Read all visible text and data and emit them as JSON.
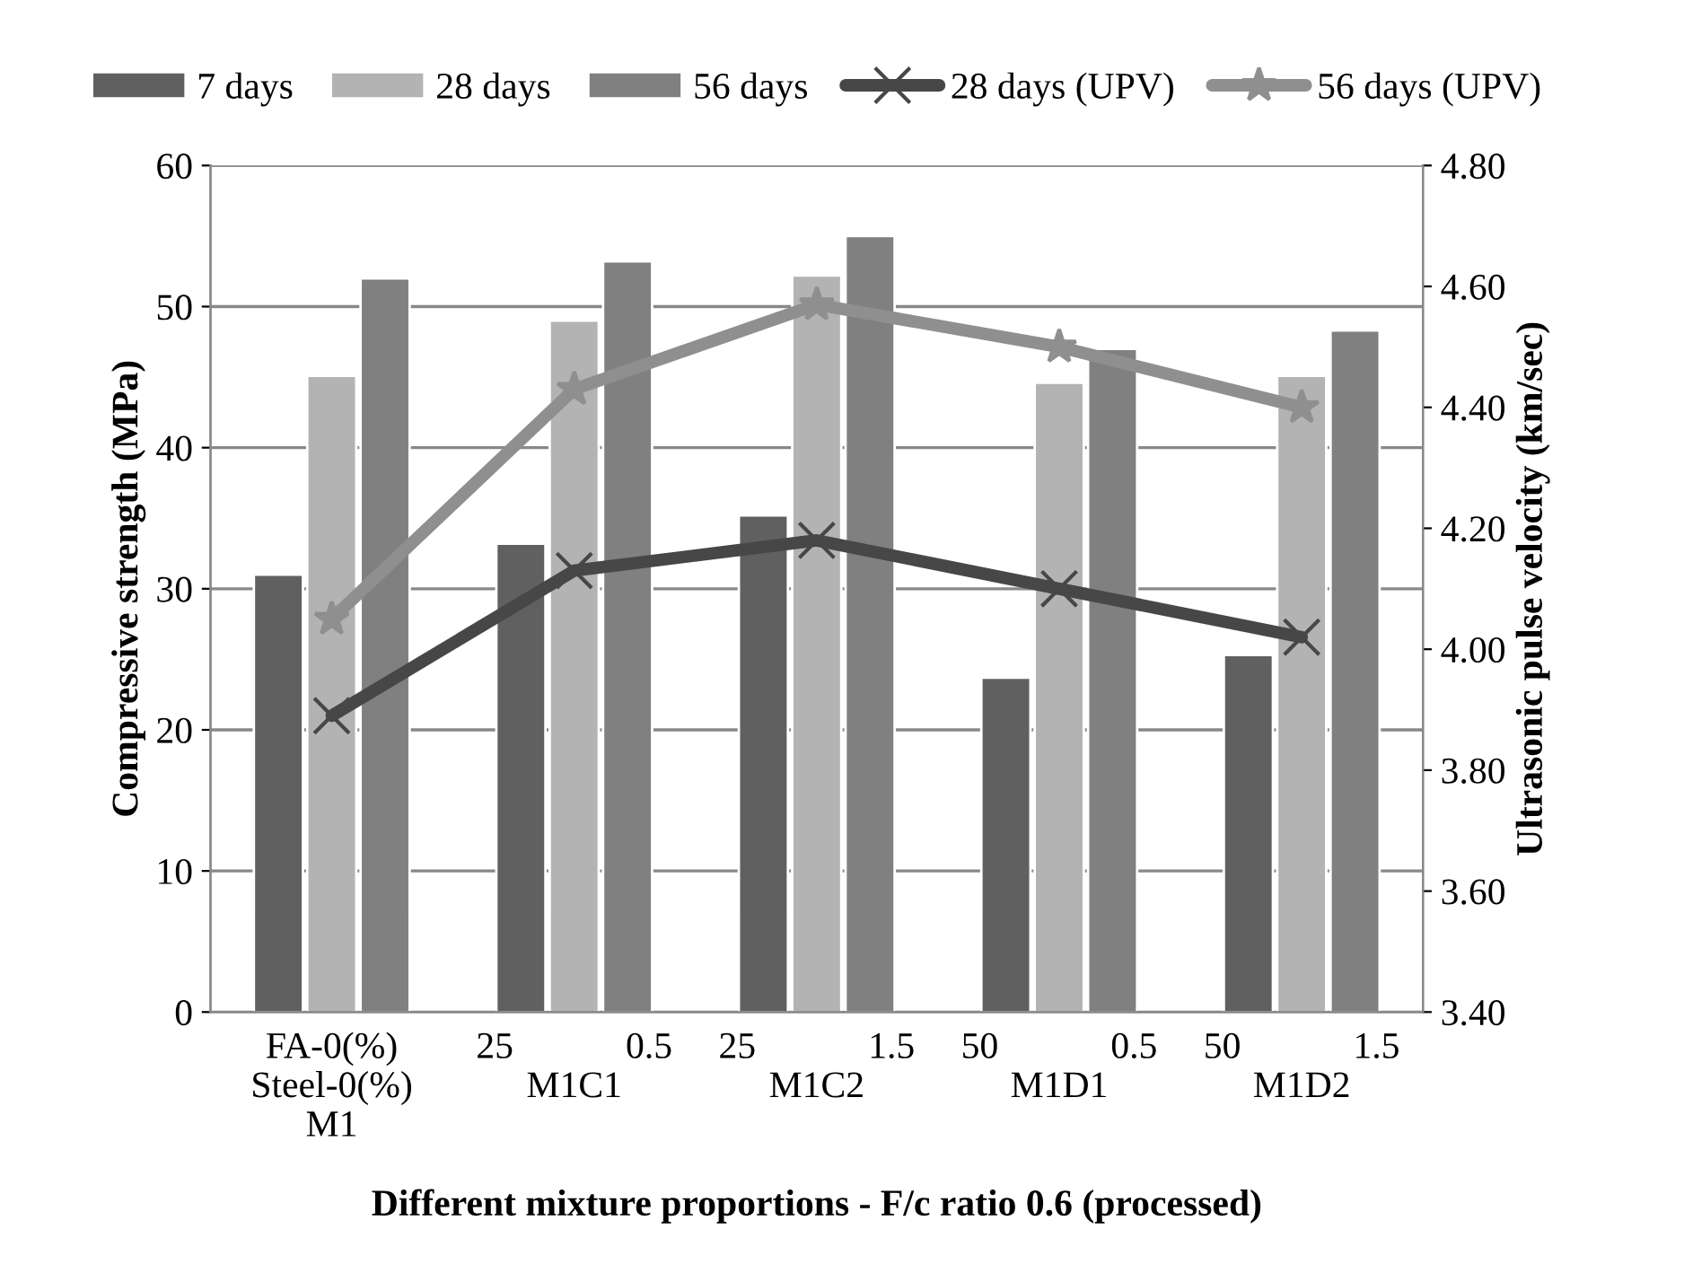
{
  "chart_data": {
    "type": "bar",
    "xlabel": "Different mixture proportions - F/c ratio 0.6 (processed)",
    "ylabel": "Compressive strength (MPa)",
    "y2label": "Ultrasonic pulse velocity (km/sec)",
    "categories": [
      "FA-0(%)\nSteel-0(%)\nM1",
      "25            0.5\nM1C1",
      "25            1.5\nM1C2",
      "50            0.5\nM1D1",
      "50            1.5\nM1D2"
    ],
    "series": [
      {
        "name": "7 days",
        "color": "#606060",
        "values": [
          31.0,
          33.2,
          35.2,
          23.7,
          25.3
        ]
      },
      {
        "name": "28 days",
        "color": "#b3b3b3",
        "values": [
          45.1,
          49.0,
          52.2,
          44.6,
          45.1
        ]
      },
      {
        "name": "56 days",
        "color": "#808080",
        "values": [
          52.0,
          53.2,
          55.0,
          47.0,
          48.3
        ]
      },
      {
        "name": "28 days (UPV)",
        "type": "line",
        "axis": "y2",
        "marker": "cross",
        "color": "#474747",
        "values": [
          3.89,
          4.13,
          4.18,
          4.1,
          4.02
        ]
      },
      {
        "name": "56 days (UPV)",
        "type": "line",
        "axis": "y2",
        "marker": "star",
        "color": "#8f8f8f",
        "values": [
          4.05,
          4.43,
          4.57,
          4.5,
          4.4
        ]
      }
    ],
    "ylim": [
      0,
      60
    ],
    "yticks": [
      0,
      10,
      20,
      30,
      40,
      50,
      60
    ],
    "y2lim": [
      3.4,
      4.8
    ],
    "y2ticks": [
      {
        "value": 3.4,
        "label": "3.40"
      },
      {
        "value": 3.6,
        "label": "3.60"
      },
      {
        "value": 3.8,
        "label": "3.80"
      },
      {
        "value": 4.0,
        "label": "4.00"
      },
      {
        "value": 4.2,
        "label": "4.20"
      },
      {
        "value": 4.4,
        "label": "4.40"
      },
      {
        "value": 4.6,
        "label": "4.60"
      },
      {
        "value": 4.8,
        "label": "4.80"
      }
    ],
    "grid": "y",
    "legend": "top"
  }
}
